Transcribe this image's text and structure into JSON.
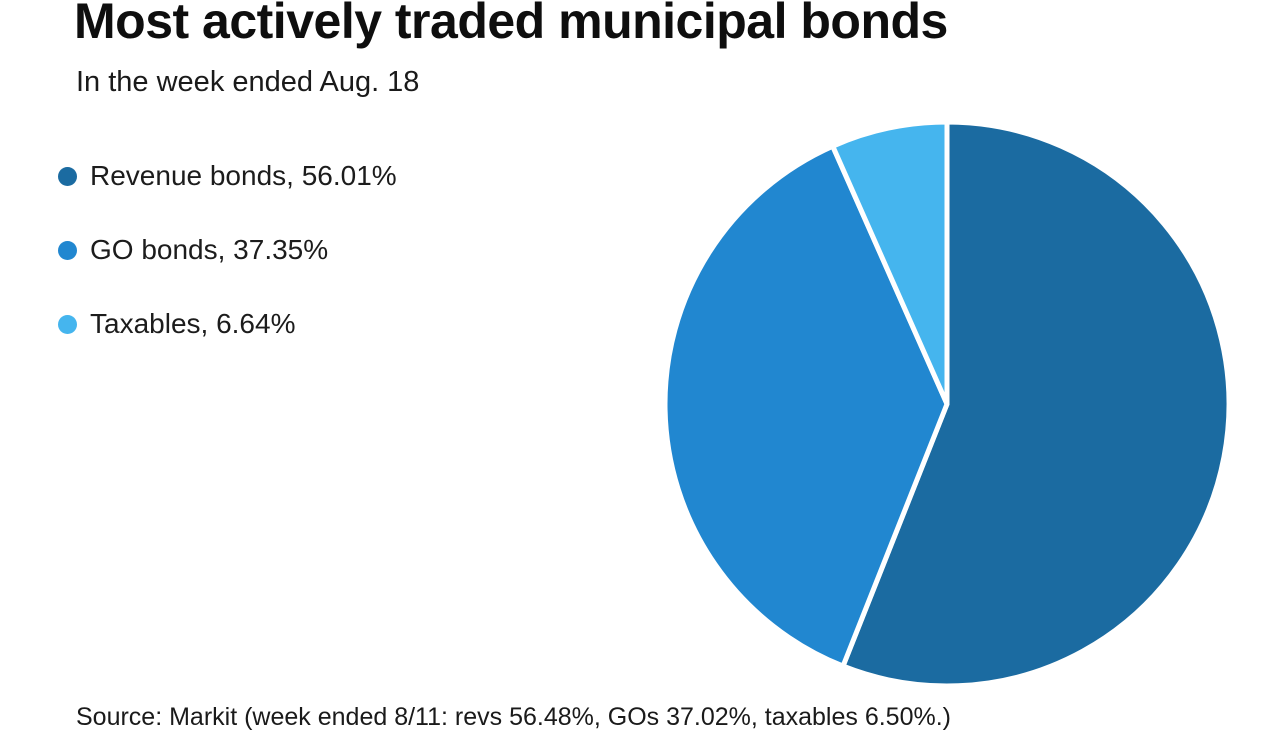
{
  "chart_data": {
    "type": "pie",
    "title": "Most actively traded municipal bonds",
    "subtitle": "In the week ended Aug. 18",
    "categories": [
      "Revenue bonds",
      "GO bonds",
      "Taxables"
    ],
    "values": [
      56.01,
      37.35,
      6.64
    ],
    "colors": [
      "#1b6ba1",
      "#2187d0",
      "#45b5ee"
    ],
    "legend_position": "left",
    "start_angle_deg": 0,
    "direction": "clockwise",
    "legend": [
      {
        "label": "Revenue bonds, 56.01%"
      },
      {
        "label": "GO bonds, 37.35%"
      },
      {
        "label": "Taxables, 6.64%"
      }
    ]
  },
  "footer": {
    "source": "Source: Markit (week ended 8/11: revs 56.48%, GOs 37.02%, taxables 6.50%.)"
  }
}
